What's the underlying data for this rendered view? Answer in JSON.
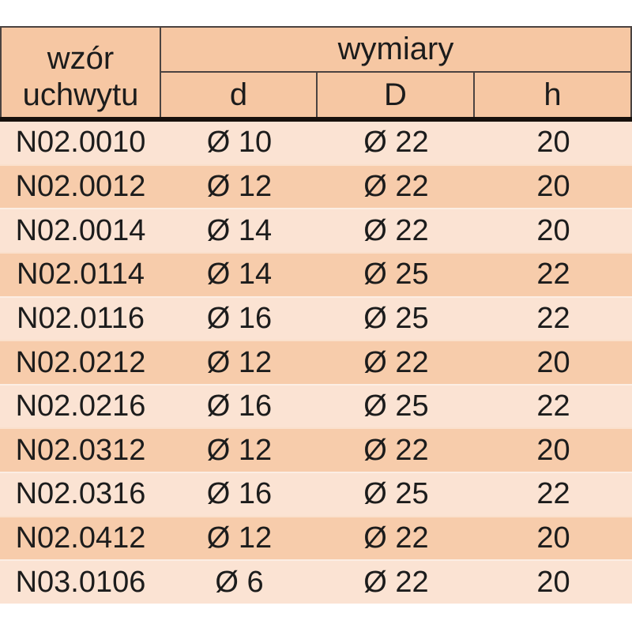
{
  "table": {
    "header": {
      "col1_line1": "wzór",
      "col1_line2": "uchwytu",
      "group_label": "wymiary",
      "subcolumns": [
        "d",
        "D",
        "h"
      ]
    },
    "rows": [
      {
        "pattern": "N02.0010",
        "d": "Ø 10",
        "D": "Ø 22",
        "h": "20"
      },
      {
        "pattern": "N02.0012",
        "d": "Ø 12",
        "D": "Ø 22",
        "h": "20"
      },
      {
        "pattern": "N02.0014",
        "d": "Ø 14",
        "D": "Ø 22",
        "h": "20"
      },
      {
        "pattern": "N02.0114",
        "d": "Ø 14",
        "D": "Ø 25",
        "h": "22"
      },
      {
        "pattern": "N02.0116",
        "d": "Ø 16",
        "D": "Ø 25",
        "h": "22"
      },
      {
        "pattern": "N02.0212",
        "d": "Ø 12",
        "D": "Ø 22",
        "h": "20"
      },
      {
        "pattern": "N02.0216",
        "d": "Ø 16",
        "D": "Ø 25",
        "h": "22"
      },
      {
        "pattern": "N02.0312",
        "d": "Ø 12",
        "D": "Ø 22",
        "h": "20"
      },
      {
        "pattern": "N02.0316",
        "d": "Ø 16",
        "D": "Ø 25",
        "h": "22"
      },
      {
        "pattern": "N02.0412",
        "d": "Ø 12",
        "D": "Ø 22",
        "h": "20"
      },
      {
        "pattern": "N03.0106",
        "d": "Ø 6",
        "D": "Ø 22",
        "h": "20"
      }
    ]
  },
  "colors": {
    "header_bg": "#f6c7a3",
    "row_light_bg": "#fbe3d3",
    "row_dark_bg": "#f7ccab",
    "border": "#4b4340",
    "thick_divider": "#17100c",
    "text": "#1c1c1c",
    "page_bg": "#ffffff"
  },
  "chart_data": {
    "type": "table",
    "title": "",
    "column_groups": [
      {
        "label": "wymiary",
        "covers": [
          "d",
          "D",
          "h"
        ]
      }
    ],
    "columns": [
      "wzór uchwytu",
      "d",
      "D",
      "h"
    ],
    "rows": [
      [
        "N02.0010",
        "Ø 10",
        "Ø 22",
        "20"
      ],
      [
        "N02.0012",
        "Ø 12",
        "Ø 22",
        "20"
      ],
      [
        "N02.0014",
        "Ø 14",
        "Ø 22",
        "20"
      ],
      [
        "N02.0114",
        "Ø 14",
        "Ø 25",
        "22"
      ],
      [
        "N02.0116",
        "Ø 16",
        "Ø 25",
        "22"
      ],
      [
        "N02.0212",
        "Ø 12",
        "Ø 22",
        "20"
      ],
      [
        "N02.0216",
        "Ø 16",
        "Ø 25",
        "22"
      ],
      [
        "N02.0312",
        "Ø 12",
        "Ø 22",
        "20"
      ],
      [
        "N02.0316",
        "Ø 16",
        "Ø 25",
        "22"
      ],
      [
        "N02.0412",
        "Ø 12",
        "Ø 22",
        "20"
      ],
      [
        "N03.0106",
        "Ø 6",
        "Ø 22",
        "20"
      ]
    ],
    "layout_hints": {
      "banded_rows": true,
      "band_colors": [
        "#fbe3d3",
        "#f7ccab"
      ],
      "header_merged_first_column": true,
      "thick_rule_below_header": true
    }
  }
}
